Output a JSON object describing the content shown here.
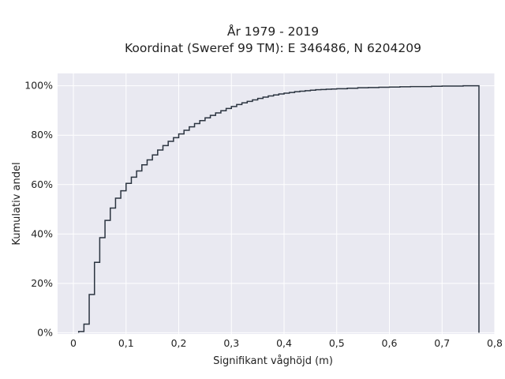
{
  "chart_data": {
    "type": "line",
    "step": true,
    "title_lines": [
      "År 1979 - 2019",
      "Koordinat (Sweref 99 TM): E 346486, N 6204209"
    ],
    "xlabel": "Signifikant våghöjd (m)",
    "ylabel": "Kumulativ andel",
    "xlim": [
      -0.03,
      0.8
    ],
    "ylim": [
      -0.005,
      1.05
    ],
    "x_ticks": [
      0,
      0.1,
      0.2,
      0.3,
      0.4,
      0.5,
      0.6,
      0.7,
      0.8
    ],
    "x_tick_labels": [
      "0",
      "0,1",
      "0,2",
      "0,3",
      "0,4",
      "0,5",
      "0,6",
      "0,7",
      "0,8"
    ],
    "y_ticks": [
      0,
      0.2,
      0.4,
      0.6,
      0.8,
      1.0
    ],
    "y_tick_labels": [
      "0%",
      "20%",
      "40%",
      "60%",
      "80%",
      "100%"
    ],
    "grid": true,
    "colors": {
      "background": "#e9e9f1",
      "grid": "#ffffff",
      "line": "#2b3440"
    },
    "series": [
      {
        "x": [
          0.01,
          0.02,
          0.03,
          0.04,
          0.05,
          0.06,
          0.07,
          0.08,
          0.09,
          0.1,
          0.11,
          0.12,
          0.13,
          0.14,
          0.15,
          0.16,
          0.17,
          0.18,
          0.19,
          0.2,
          0.21,
          0.22,
          0.23,
          0.24,
          0.25,
          0.26,
          0.27,
          0.28,
          0.29,
          0.3,
          0.31,
          0.32,
          0.33,
          0.34,
          0.35,
          0.36,
          0.37,
          0.38,
          0.39,
          0.4,
          0.41,
          0.42,
          0.43,
          0.44,
          0.45,
          0.46,
          0.47,
          0.48,
          0.49,
          0.5,
          0.52,
          0.54,
          0.56,
          0.58,
          0.6,
          0.62,
          0.64,
          0.66,
          0.68,
          0.7,
          0.72,
          0.74,
          0.77
        ],
        "y": [
          0.005,
          0.035,
          0.155,
          0.285,
          0.385,
          0.455,
          0.505,
          0.545,
          0.575,
          0.605,
          0.63,
          0.655,
          0.68,
          0.7,
          0.72,
          0.74,
          0.758,
          0.775,
          0.79,
          0.805,
          0.82,
          0.834,
          0.847,
          0.859,
          0.87,
          0.88,
          0.89,
          0.899,
          0.908,
          0.916,
          0.924,
          0.931,
          0.937,
          0.943,
          0.949,
          0.954,
          0.959,
          0.963,
          0.967,
          0.97,
          0.973,
          0.976,
          0.978,
          0.98,
          0.982,
          0.984,
          0.985,
          0.986,
          0.987,
          0.988,
          0.99,
          0.992,
          0.993,
          0.994,
          0.995,
          0.996,
          0.997,
          0.997,
          0.998,
          0.999,
          0.999,
          1.0,
          1.0
        ],
        "drop_to_zero_at": 0.77
      }
    ]
  }
}
